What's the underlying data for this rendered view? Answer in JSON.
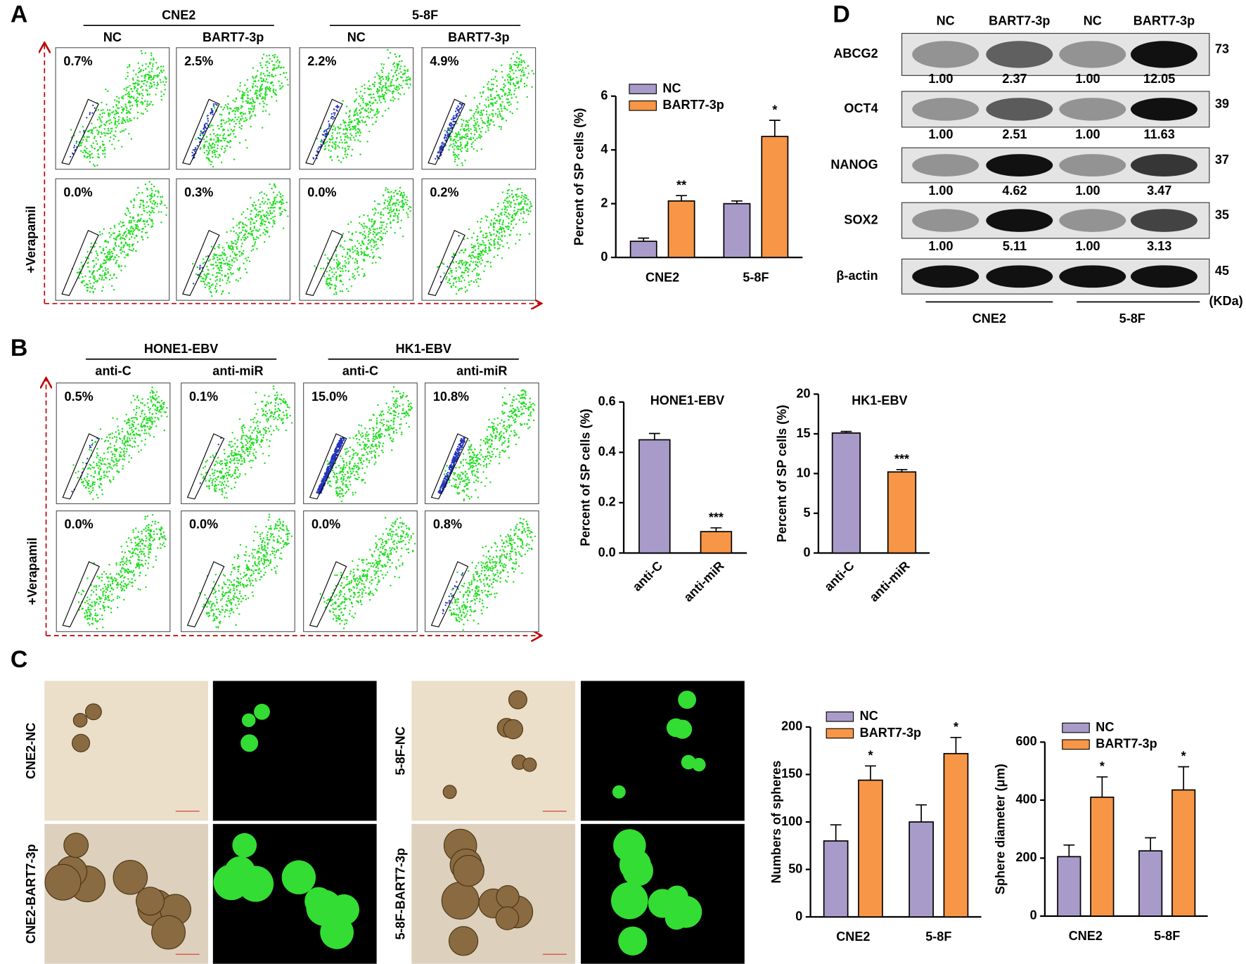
{
  "panel_labels": [
    "A",
    "B",
    "C",
    "D"
  ],
  "flow_a": {
    "groups": [
      "CNE2",
      "5-8F"
    ],
    "columns": [
      "NC",
      "BART7-3p",
      "NC",
      "BART7-3p"
    ],
    "rows": [
      [
        "0.7%",
        "2.5%",
        "2.2%",
        "4.9%"
      ],
      [
        "0.0%",
        "0.3%",
        "0.0%",
        "0.2%"
      ]
    ],
    "row_label": "+Verapamil"
  },
  "flow_b": {
    "groups": [
      "HONE1-EBV",
      "HK1-EBV"
    ],
    "columns": [
      "anti-C",
      "anti-miR",
      "anti-C",
      "anti-miR"
    ],
    "rows": [
      [
        "0.5%",
        "0.1%",
        "15.0%",
        "10.8%"
      ],
      [
        "0.0%",
        "0.0%",
        "0.0%",
        "0.8%"
      ]
    ],
    "row_label": "+Verapamil"
  },
  "spheres": {
    "labels": [
      "CNE2-NC",
      "CNE2-BART7-3p",
      "5-8F-NC",
      "5-8F-BART7-3p"
    ]
  },
  "blot": {
    "columns": [
      "NC",
      "BART7-3p",
      "NC",
      "BART7-3p"
    ],
    "groups": [
      "CNE2",
      "5-8F"
    ],
    "unit": "(KDa)",
    "rows": [
      {
        "name": "ABCG2",
        "quant": [
          "1.00",
          "2.37",
          "1.00",
          "12.05"
        ],
        "kda": 73
      },
      {
        "name": "OCT4",
        "quant": [
          "1.00",
          "2.51",
          "1.00",
          "11.63"
        ],
        "kda": 39
      },
      {
        "name": "NANOG",
        "quant": [
          "1.00",
          "4.62",
          "1.00",
          "3.47"
        ],
        "kda": 37
      },
      {
        "name": "SOX2",
        "quant": [
          "1.00",
          "5.11",
          "1.00",
          "3.13"
        ],
        "kda": 35
      },
      {
        "name": "β-actin",
        "kda": 45
      }
    ]
  },
  "chart_data": [
    {
      "type": "bar",
      "y_label": "Percent of SP cells (%)",
      "categories": [
        "CNE2",
        "5-8F"
      ],
      "legend": "top-left",
      "series": [
        {
          "name": "NC",
          "color": "#a99bc9",
          "values": [
            0.6,
            2.0
          ],
          "errors": [
            0.12,
            0.1
          ]
        },
        {
          "name": "BART7-3p",
          "color": "#f79646",
          "values": [
            2.1,
            4.5
          ],
          "errors": [
            0.2,
            0.6
          ],
          "significance": [
            "**",
            "*"
          ]
        }
      ],
      "ylim": [
        0,
        6
      ],
      "yticks": [
        0,
        2,
        4,
        6
      ]
    },
    {
      "type": "bar",
      "title": "HONE1-EBV",
      "y_label": "Percent of SP cells (%)",
      "categories": [
        "anti-C",
        "anti-miR"
      ],
      "values": [
        0.45,
        0.085
      ],
      "errors": [
        0.025,
        0.015
      ],
      "colors": [
        "#a99bc9",
        "#f79646"
      ],
      "significance": [
        null,
        "***"
      ],
      "ylim": [
        0,
        0.6
      ],
      "yticks": [
        {
          "value": 0,
          "label": "0.0"
        },
        0.2,
        0.4,
        0.6
      ]
    },
    {
      "type": "bar",
      "title": "HK1-EBV",
      "y_label": "Percent of SP cells (%)",
      "categories": [
        "anti-C",
        "anti-miR"
      ],
      "values": [
        15.1,
        10.2
      ],
      "errors": [
        0.2,
        0.3
      ],
      "colors": [
        "#a99bc9",
        "#f79646"
      ],
      "significance": [
        null,
        "***"
      ],
      "ylim": [
        0,
        20
      ],
      "yticks": [
        0,
        5,
        10,
        15,
        20
      ]
    },
    {
      "type": "bar",
      "y_label": "Numbers of spheres",
      "categories": [
        "CNE2",
        "5-8F"
      ],
      "legend": "top-left",
      "series": [
        {
          "name": "NC",
          "color": "#a99bc9",
          "values": [
            80,
            100
          ],
          "errors": [
            17,
            18
          ]
        },
        {
          "name": "BART7-3p",
          "color": "#f79646",
          "values": [
            144,
            172
          ],
          "errors": [
            15,
            17
          ],
          "significance": [
            "*",
            "*"
          ]
        }
      ],
      "ylim": [
        0,
        200
      ],
      "yticks": [
        0,
        50,
        100,
        150,
        200
      ]
    },
    {
      "type": "bar",
      "y_label": "Sphere diameter (μm)",
      "categories": [
        "CNE2",
        "5-8F"
      ],
      "legend": "top-left",
      "series": [
        {
          "name": "NC",
          "color": "#a99bc9",
          "values": [
            205,
            225
          ],
          "errors": [
            40,
            45
          ]
        },
        {
          "name": "BART7-3p",
          "color": "#f79646",
          "values": [
            410,
            435
          ],
          "errors": [
            70,
            80
          ],
          "significance": [
            "*",
            "*"
          ]
        }
      ],
      "ylim": [
        0,
        600
      ],
      "yticks": [
        0,
        200,
        400,
        600
      ]
    }
  ]
}
